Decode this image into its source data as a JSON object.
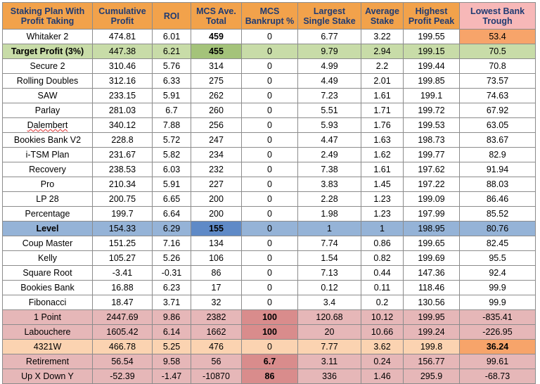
{
  "headers": [
    "Staking Plan With Profit Taking",
    "Cumulative Profit",
    "ROI",
    "MCS Ave. Total",
    "MCS Bankrupt %",
    "Largest Single Stake",
    "Average Stake",
    "Highest Profit Peak",
    "Lowest Bank Trough"
  ],
  "rows": [
    [
      "Whitaker 2",
      "474.81",
      "6.01",
      "459",
      "0",
      "6.77",
      "3.22",
      "199.55",
      "53.4"
    ],
    [
      "Target Profit (3%)",
      "447.38",
      "6.21",
      "455",
      "0",
      "9.79",
      "2.94",
      "199.15",
      "70.5"
    ],
    [
      "Secure 2",
      "310.46",
      "5.76",
      "314",
      "0",
      "4.99",
      "2.2",
      "199.44",
      "70.8"
    ],
    [
      "Rolling Doubles",
      "312.16",
      "6.33",
      "275",
      "0",
      "4.49",
      "2.01",
      "199.85",
      "73.57"
    ],
    [
      "SAW",
      "233.15",
      "5.91",
      "262",
      "0",
      "7.23",
      "1.61",
      "199.1",
      "74.63"
    ],
    [
      "Parlay",
      "281.03",
      "6.7",
      "260",
      "0",
      "5.51",
      "1.71",
      "199.72",
      "67.92"
    ],
    [
      "Dalembert",
      "340.12",
      "7.88",
      "256",
      "0",
      "5.93",
      "1.76",
      "199.53",
      "63.05"
    ],
    [
      "Bookies Bank V2",
      "228.8",
      "5.72",
      "247",
      "0",
      "4.47",
      "1.63",
      "198.73",
      "83.67"
    ],
    [
      "i-TSM Plan",
      "231.67",
      "5.82",
      "234",
      "0",
      "2.49",
      "1.62",
      "199.77",
      "82.9"
    ],
    [
      "Recovery",
      "238.53",
      "6.03",
      "232",
      "0",
      "7.38",
      "1.61",
      "197.62",
      "91.94"
    ],
    [
      "Pro",
      "210.34",
      "5.91",
      "227",
      "0",
      "3.83",
      "1.45",
      "197.22",
      "88.03"
    ],
    [
      "LP 28",
      "200.75",
      "6.65",
      "200",
      "0",
      "2.28",
      "1.23",
      "199.09",
      "86.46"
    ],
    [
      "Percentage",
      "199.7",
      "6.64",
      "200",
      "0",
      "1.98",
      "1.23",
      "197.99",
      "85.52"
    ],
    [
      "Level",
      "154.33",
      "6.29",
      "155",
      "0",
      "1",
      "1",
      "198.95",
      "80.76"
    ],
    [
      "Coup Master",
      "151.25",
      "7.16",
      "134",
      "0",
      "7.74",
      "0.86",
      "199.65",
      "82.45"
    ],
    [
      "Kelly",
      "105.27",
      "5.26",
      "106",
      "0",
      "1.54",
      "0.82",
      "199.69",
      "95.5"
    ],
    [
      "Square Root",
      "-3.41",
      "-0.31",
      "86",
      "0",
      "7.13",
      "0.44",
      "147.36",
      "92.4"
    ],
    [
      "Bookies Bank",
      "16.88",
      "6.23",
      "17",
      "0",
      "0.12",
      "0.11",
      "118.46",
      "99.9"
    ],
    [
      "Fibonacci",
      "18.47",
      "3.71",
      "32",
      "0",
      "3.4",
      "0.2",
      "130.56",
      "99.9"
    ],
    [
      "1 Point",
      "2447.69",
      "9.86",
      "2382",
      "100",
      "120.68",
      "10.12",
      "199.95",
      "-835.41"
    ],
    [
      "Labouchere",
      "1605.42",
      "6.14",
      "1662",
      "100",
      "20",
      "10.66",
      "199.24",
      "-226.95"
    ],
    [
      "4321W",
      "466.78",
      "5.25",
      "476",
      "0",
      "7.77",
      "3.62",
      "199.8",
      "36.24"
    ],
    [
      "Retirement",
      "56.54",
      "9.58",
      "56",
      "6.7",
      "3.11",
      "0.24",
      "156.77",
      "99.61"
    ],
    [
      "Up X Down Y",
      "-52.39",
      "-1.47",
      "-10870",
      "86",
      "336",
      "1.46",
      "295.9",
      "-68.73"
    ]
  ],
  "colors": {
    "header": "#f2a24b",
    "header_last": "#f7b8b8",
    "header_text": "#1f3b73",
    "row_green": "#c8dca8",
    "row_blue": "#95b3d7",
    "row_pink": "#e6b7b8",
    "row_peach": "#fbd3b1",
    "highlight_orange": "#f7a46a",
    "highlight_red": "#d98c8c"
  }
}
